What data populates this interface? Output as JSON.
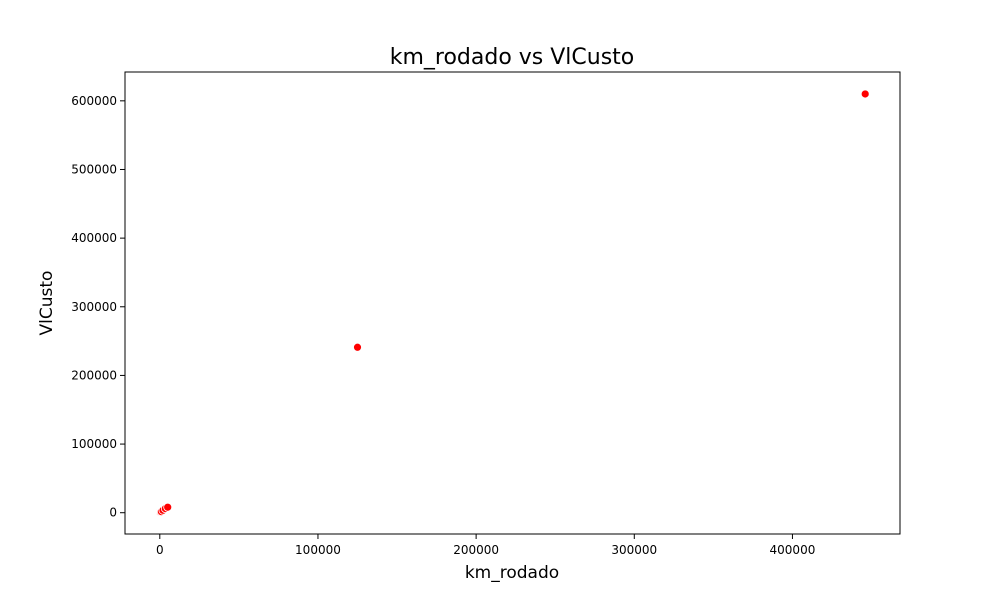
{
  "colors": {
    "point_fill": "#ff0000",
    "point_edge": "#ffffff",
    "axes": "#000000",
    "background": "#ffffff"
  },
  "chart_data": {
    "type": "scatter",
    "title": "km_rodado vs VlCusto",
    "xlabel": "km_rodado",
    "ylabel": "VlCusto",
    "xlim": [
      -22000,
      468000
    ],
    "ylim": [
      -31000,
      642000
    ],
    "xticks": [
      0,
      100000,
      200000,
      300000,
      400000
    ],
    "xtick_labels": [
      "0",
      "100000",
      "200000",
      "300000",
      "400000"
    ],
    "yticks": [
      0,
      100000,
      200000,
      300000,
      400000,
      500000,
      600000
    ],
    "ytick_labels": [
      "0",
      "100000",
      "200000",
      "300000",
      "400000",
      "500000",
      "600000"
    ],
    "grid": false,
    "series": [
      {
        "points": [
          {
            "x": 0,
            "y": 0
          },
          {
            "x": 200,
            "y": 400
          },
          {
            "x": 500,
            "y": 1000
          },
          {
            "x": 1000,
            "y": 1500
          },
          {
            "x": 2000,
            "y": 3500
          },
          {
            "x": 3500,
            "y": 6000
          },
          {
            "x": 5000,
            "y": 8000
          },
          {
            "x": 125000,
            "y": 241000
          },
          {
            "x": 446000,
            "y": 610000
          }
        ]
      }
    ]
  }
}
